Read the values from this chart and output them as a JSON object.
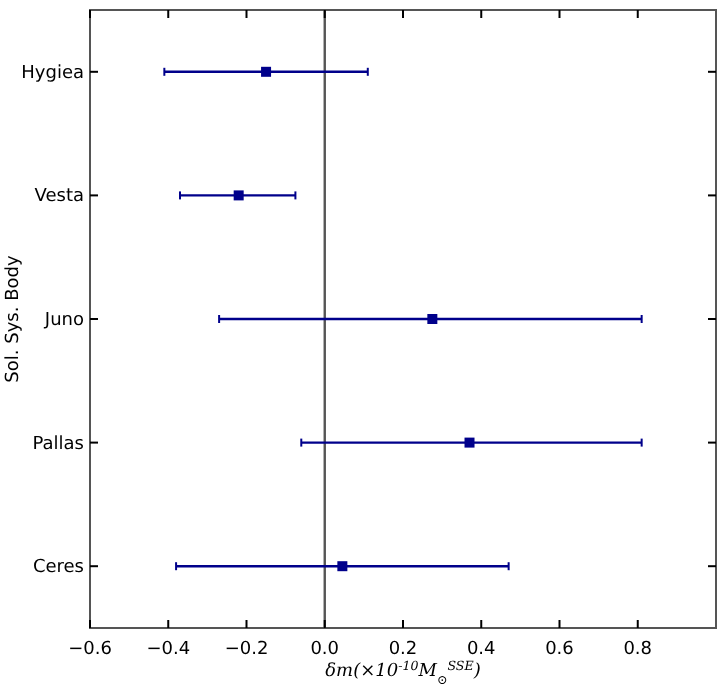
{
  "chart_data": {
    "type": "scatter",
    "orientation": "horizontal",
    "ylabel": "Sol. Sys. Body",
    "xlabel": "δm(×10$^{-10}$M$_{⊙}$$^{SSE}$)",
    "categories": [
      "Hygiea",
      "Vesta",
      "Juno",
      "Pallas",
      "Ceres"
    ],
    "series": [
      {
        "color": "#00008b",
        "values": [
          -0.15,
          -0.22,
          0.275,
          0.37,
          0.045
        ],
        "errors": [
          [
            -0.41,
            0.11
          ],
          [
            -0.37,
            -0.075
          ],
          [
            -0.27,
            0.81
          ],
          [
            -0.06,
            0.81
          ],
          [
            -0.38,
            0.47
          ]
        ]
      }
    ],
    "xlim": [
      -0.6,
      1.0
    ],
    "xticks": [
      {
        "value": -0.6,
        "label": "−0.6"
      },
      {
        "value": -0.4,
        "label": "−0.4"
      },
      {
        "value": -0.2,
        "label": "−0.2"
      },
      {
        "value": 0,
        "label": "0.0"
      },
      {
        "value": 0.2,
        "label": "0.2"
      },
      {
        "value": 0.4,
        "label": "0.4"
      },
      {
        "value": 0.6,
        "label": "0.6"
      },
      {
        "value": 0.8,
        "label": "0.8"
      }
    ],
    "ref_lines": [
      {
        "axis": "x",
        "value": 0,
        "color": "#555555"
      }
    ],
    "marker": "square",
    "grid": false
  }
}
